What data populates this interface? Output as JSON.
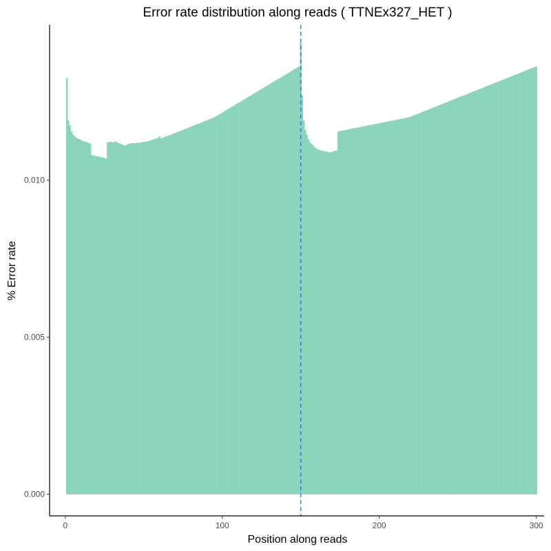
{
  "colors": {
    "bar_fill": "#8ed6bd",
    "bar_edge": "#66c2a5",
    "vline": "#3a7fd0",
    "axis": "#000000"
  },
  "chart_data": {
    "type": "bar",
    "title": "Error rate distribution along reads ( TTNEx327_HET )",
    "xlabel": "Position along reads",
    "ylabel": "% Error rate",
    "xlim": [
      -10,
      305
    ],
    "ylim": [
      -0.00069,
      0.01495
    ],
    "xticks": [
      0,
      100,
      200,
      300
    ],
    "xtick_labels": [
      "0",
      "100",
      "200",
      "300"
    ],
    "yticks": [
      0.0,
      0.005,
      0.01
    ],
    "ytick_labels": [
      "0.000",
      "0.005",
      "0.010"
    ],
    "vline_x": 150,
    "grid": false,
    "legend": "none",
    "positions": {
      "start": 1,
      "end": 300
    },
    "values": [
      0.01325,
      0.0119,
      0.01175,
      0.01155,
      0.01145,
      0.0114,
      0.01135,
      0.01133,
      0.0113,
      0.01128,
      0.01125,
      0.01123,
      0.01122,
      0.0112,
      0.01118,
      0.01116,
      0.0108,
      0.01078,
      0.01077,
      0.01076,
      0.01075,
      0.01074,
      0.01073,
      0.01072,
      0.0107,
      0.01069,
      0.0112,
      0.01121,
      0.01122,
      0.01121,
      0.0112,
      0.01124,
      0.0112,
      0.01118,
      0.01116,
      0.01114,
      0.01112,
      0.0111,
      0.01112,
      0.01115,
      0.01116,
      0.01117,
      0.01118,
      0.01117,
      0.01118,
      0.01119,
      0.01118,
      0.0112,
      0.01121,
      0.01121,
      0.01122,
      0.01123,
      0.01124,
      0.01126,
      0.01128,
      0.01129,
      0.01131,
      0.01132,
      0.01134,
      0.0114,
      0.01133,
      0.01135,
      0.01137,
      0.01139,
      0.01141,
      0.01142,
      0.01144,
      0.01146,
      0.01148,
      0.0115,
      0.01152,
      0.01154,
      0.01156,
      0.01158,
      0.0116,
      0.01162,
      0.01164,
      0.01166,
      0.01168,
      0.0117,
      0.01172,
      0.01174,
      0.01176,
      0.01178,
      0.0118,
      0.01182,
      0.01184,
      0.01186,
      0.01188,
      0.0119,
      0.01192,
      0.01194,
      0.01196,
      0.01198,
      0.012,
      0.01203,
      0.01206,
      0.01209,
      0.01212,
      0.01215,
      0.01218,
      0.01221,
      0.01224,
      0.01227,
      0.0123,
      0.01233,
      0.01236,
      0.01239,
      0.01242,
      0.01245,
      0.01248,
      0.01251,
      0.01254,
      0.01257,
      0.0126,
      0.01263,
      0.01266,
      0.01269,
      0.01272,
      0.01275,
      0.01278,
      0.01281,
      0.01284,
      0.01287,
      0.0129,
      0.01293,
      0.01296,
      0.01299,
      0.01302,
      0.01305,
      0.01308,
      0.01311,
      0.01314,
      0.01317,
      0.0132,
      0.01323,
      0.01326,
      0.01329,
      0.01332,
      0.01335,
      0.01338,
      0.01341,
      0.01344,
      0.01347,
      0.0135,
      0.01353,
      0.01356,
      0.01359,
      0.01362,
      0.01438,
      0.0127,
      0.0119,
      0.0116,
      0.01145,
      0.0113,
      0.0112,
      0.01115,
      0.0111,
      0.01105,
      0.011,
      0.01098,
      0.01096,
      0.01094,
      0.01093,
      0.01092,
      0.01091,
      0.0109,
      0.01089,
      0.01088,
      0.0109,
      0.01092,
      0.01093,
      0.01094,
      0.01155,
      0.01156,
      0.01157,
      0.01158,
      0.01159,
      0.0116,
      0.01161,
      0.01162,
      0.01163,
      0.01164,
      0.01165,
      0.01166,
      0.01167,
      0.01168,
      0.01169,
      0.0117,
      0.01171,
      0.01172,
      0.01173,
      0.01174,
      0.01175,
      0.01176,
      0.01177,
      0.01178,
      0.01179,
      0.0118,
      0.01181,
      0.01182,
      0.01183,
      0.01184,
      0.01185,
      0.01186,
      0.01187,
      0.01188,
      0.01189,
      0.0119,
      0.01191,
      0.01192,
      0.01193,
      0.01194,
      0.01195,
      0.01196,
      0.01197,
      0.01198,
      0.01199,
      0.012,
      0.01202,
      0.01204,
      0.01206,
      0.01208,
      0.0121,
      0.01212,
      0.01214,
      0.01216,
      0.01218,
      0.0122,
      0.01222,
      0.01224,
      0.01226,
      0.01228,
      0.0123,
      0.01232,
      0.01234,
      0.01236,
      0.01238,
      0.0124,
      0.01242,
      0.01244,
      0.01246,
      0.01248,
      0.0125,
      0.01252,
      0.01254,
      0.01256,
      0.01258,
      0.0126,
      0.01262,
      0.01264,
      0.01266,
      0.01268,
      0.0127,
      0.01272,
      0.01274,
      0.01276,
      0.01278,
      0.0128,
      0.01282,
      0.01284,
      0.01286,
      0.01288,
      0.0129,
      0.01292,
      0.01294,
      0.01296,
      0.01298,
      0.013,
      0.01302,
      0.01304,
      0.01306,
      0.01308,
      0.0131,
      0.01312,
      0.01314,
      0.01316,
      0.01318,
      0.0132,
      0.01322,
      0.01324,
      0.01326,
      0.01328,
      0.0133,
      0.01332,
      0.01334,
      0.01336,
      0.01338,
      0.0134,
      0.01342,
      0.01344,
      0.01346,
      0.01348,
      0.0135,
      0.01352,
      0.01354,
      0.01356,
      0.01358,
      0.0136,
      0.01362
    ]
  }
}
